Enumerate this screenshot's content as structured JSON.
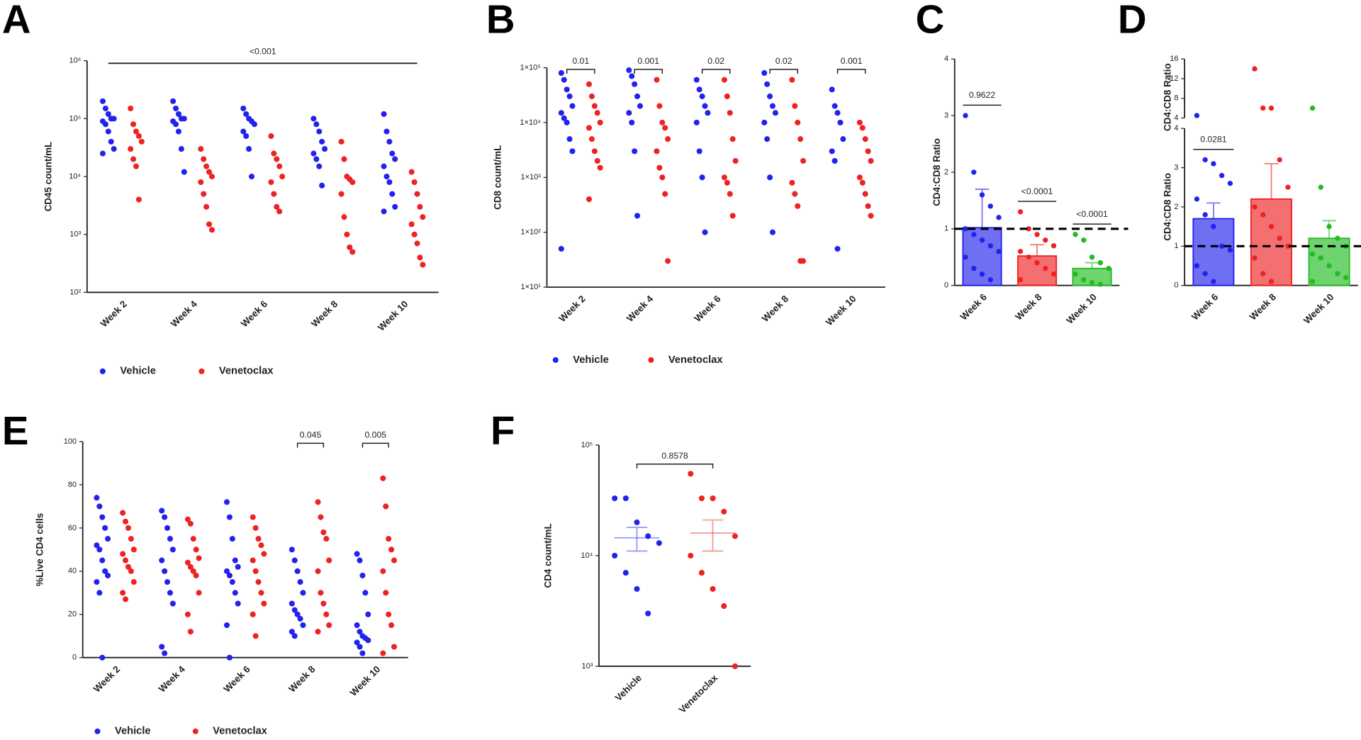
{
  "chart_data": [
    {
      "type": "scatter",
      "panel_label": "A",
      "y_label": "CD45 count/mL",
      "log_scale": true,
      "ylim": [
        100,
        1000000
      ],
      "yticks": [
        {
          "value": 100,
          "label": "10²"
        },
        {
          "value": 1000,
          "label": "10³"
        },
        {
          "value": 10000,
          "label": "10⁴"
        },
        {
          "value": 100000,
          "label": "10⁵"
        },
        {
          "value": 1000000,
          "label": "10⁶"
        }
      ],
      "categories": [
        "Week 2",
        "Week 4",
        "Week 6",
        "Week 8",
        "Week 10"
      ],
      "legend": true,
      "annotation": "<0.001",
      "series": [
        {
          "name": "Vehicle",
          "color": "#2222ee",
          "values": [
            [
              200000,
              150000,
              120000,
              100000,
              100000,
              90000,
              80000,
              60000,
              40000,
              30000,
              25000
            ],
            [
              200000,
              150000,
              120000,
              100000,
              100000,
              90000,
              80000,
              60000,
              30000,
              12000
            ],
            [
              150000,
              120000,
              100000,
              90000,
              80000,
              60000,
              50000,
              30000,
              10000
            ],
            [
              100000,
              80000,
              60000,
              40000,
              30000,
              25000,
              20000,
              15000,
              7000
            ],
            [
              120000,
              60000,
              40000,
              25000,
              20000,
              15000,
              10000,
              8000,
              5000,
              3000,
              2500
            ]
          ]
        },
        {
          "name": "Venetoclax",
          "color": "#ee2222",
          "values": [
            [
              150000,
              80000,
              60000,
              50000,
              40000,
              30000,
              20000,
              15000,
              4000
            ],
            [
              30000,
              20000,
              15000,
              12000,
              10000,
              8000,
              5000,
              3000,
              1500,
              1200
            ],
            [
              50000,
              25000,
              20000,
              15000,
              10000,
              8000,
              5000,
              3000,
              2500
            ],
            [
              40000,
              20000,
              10000,
              9000,
              8000,
              5000,
              2000,
              1000,
              600,
              500
            ],
            [
              12000,
              8000,
              5000,
              3000,
              2000,
              1500,
              1000,
              700,
              400,
              300
            ]
          ]
        }
      ]
    },
    {
      "type": "scatter",
      "panel_label": "B",
      "y_label": "CD8 count/mL",
      "log_scale": true,
      "ylim": [
        10,
        100000
      ],
      "yticks": [
        {
          "value": 10,
          "label": "1×10¹"
        },
        {
          "value": 100,
          "label": "1×10²"
        },
        {
          "value": 1000,
          "label": "1×10³"
        },
        {
          "value": 10000,
          "label": "1×10⁴"
        },
        {
          "value": 100000,
          "label": "1×10⁵"
        }
      ],
      "categories": [
        "Week 2",
        "Week 4",
        "Week 6",
        "Week 8",
        "Week 10"
      ],
      "legend": true,
      "annotations": [
        "0.01",
        "0.001",
        "0.02",
        "0.02",
        "0.001"
      ],
      "series": [
        {
          "name": "Vehicle",
          "color": "#2222ee",
          "values": [
            [
              80000,
              60000,
              40000,
              30000,
              20000,
              15000,
              12000,
              10000,
              5000,
              3000,
              50
            ],
            [
              90000,
              70000,
              50000,
              30000,
              20000,
              15000,
              10000,
              3000,
              200
            ],
            [
              60000,
              40000,
              30000,
              20000,
              15000,
              10000,
              3000,
              1000,
              100
            ],
            [
              80000,
              50000,
              30000,
              20000,
              15000,
              10000,
              5000,
              1000,
              100
            ],
            [
              40000,
              20000,
              15000,
              10000,
              5000,
              3000,
              2000,
              50
            ]
          ]
        },
        {
          "name": "Venetoclax",
          "color": "#ee2222",
          "values": [
            [
              50000,
              30000,
              20000,
              15000,
              10000,
              8000,
              5000,
              3000,
              2000,
              1500,
              400
            ],
            [
              60000,
              20000,
              10000,
              8000,
              5000,
              3000,
              1500,
              1000,
              500,
              30
            ],
            [
              60000,
              30000,
              15000,
              5000,
              2000,
              1000,
              800,
              500,
              200
            ],
            [
              60000,
              20000,
              10000,
              5000,
              2000,
              800,
              500,
              300,
              30,
              30
            ],
            [
              10000,
              8000,
              5000,
              3000,
              2000,
              1000,
              800,
              500,
              300,
              200
            ]
          ]
        }
      ]
    },
    {
      "type": "bar",
      "panel_label": "C",
      "y_label": "CD4:CD8 Ratio",
      "ylim": [
        0,
        4
      ],
      "yticks": [
        0,
        1,
        2,
        3,
        4
      ],
      "reference": 1,
      "categories": [
        "Week 6",
        "Week 8",
        "Week 10"
      ],
      "colors": [
        "#2222ee",
        "#ee2222",
        "#22bb22"
      ],
      "values": [
        1.02,
        0.52,
        0.3
      ],
      "errors": [
        0.68,
        0.2,
        0.1
      ],
      "points": [
        [
          3.0,
          2.0,
          1.6,
          1.4,
          1.2,
          1.0,
          0.9,
          0.8,
          0.7,
          0.6,
          0.5,
          0.3,
          0.2,
          0.1
        ],
        [
          1.3,
          1.0,
          0.9,
          0.8,
          0.7,
          0.6,
          0.5,
          0.4,
          0.3,
          0.2,
          0.1
        ],
        [
          0.9,
          0.8,
          0.5,
          0.4,
          0.3,
          0.2,
          0.1,
          0.05,
          0.02
        ]
      ],
      "annotations": [
        "0.9622",
        "<0.0001",
        "<0.0001"
      ]
    },
    {
      "type": "bar",
      "panel_label": "D",
      "y_label": "CD4:CD8 Ratio",
      "ylim": [
        0,
        4
      ],
      "yticks": [
        0,
        1,
        2,
        3,
        4
      ],
      "ylim_upper": [
        4,
        16
      ],
      "yticks_upper": [
        4,
        8,
        12,
        16
      ],
      "reference": 1,
      "categories": [
        "Week 6",
        "Week 8",
        "Week 10"
      ],
      "colors": [
        "#2222ee",
        "#ee2222",
        "#22bb22"
      ],
      "values": [
        1.7,
        2.2,
        1.2
      ],
      "errors": [
        0.4,
        0.9,
        0.45
      ],
      "points": [
        [
          4.5,
          3.2,
          3.1,
          2.8,
          2.6,
          2.2,
          1.8,
          1.5,
          1.0,
          0.9,
          0.5,
          0.3,
          0.1
        ],
        [
          14,
          6,
          6,
          3.2,
          2.5,
          2.0,
          1.8,
          1.5,
          1.2,
          1.0,
          0.7,
          0.3,
          0.1
        ],
        [
          6,
          2.5,
          1.5,
          1.2,
          1.0,
          0.8,
          0.7,
          0.5,
          0.3,
          0.2,
          0.1
        ]
      ],
      "annotations": [
        "0.0281",
        null,
        null
      ]
    },
    {
      "type": "scatter",
      "panel_label": "E",
      "y_label": "%Live CD4 cells",
      "ylim": [
        0,
        100
      ],
      "yticks": [
        0,
        20,
        40,
        60,
        80,
        100
      ],
      "categories": [
        "Week 2",
        "Week 4",
        "Week 6",
        "Week 8",
        "Week 10"
      ],
      "legend": true,
      "annotations": [
        null,
        null,
        null,
        "0.045",
        "0.005"
      ],
      "series": [
        {
          "name": "Vehicle",
          "color": "#2222ee",
          "values": [
            [
              74,
              70,
              65,
              60,
              55,
              52,
              50,
              45,
              40,
              38,
              35,
              30,
              0
            ],
            [
              68,
              65,
              60,
              55,
              50,
              45,
              40,
              35,
              30,
              25,
              5,
              2
            ],
            [
              72,
              65,
              55,
              45,
              42,
              40,
              38,
              35,
              30,
              25,
              15,
              0
            ],
            [
              50,
              45,
              40,
              35,
              30,
              25,
              22,
              20,
              18,
              15,
              12,
              10
            ],
            [
              48,
              45,
              38,
              30,
              20,
              15,
              12,
              10,
              9,
              8,
              7,
              5,
              2
            ]
          ]
        },
        {
          "name": "Venetoclax",
          "color": "#ee2222",
          "values": [
            [
              67,
              63,
              60,
              55,
              50,
              48,
              45,
              42,
              40,
              35,
              30,
              27
            ],
            [
              64,
              62,
              55,
              50,
              46,
              44,
              42,
              40,
              38,
              30,
              20,
              12
            ],
            [
              65,
              60,
              55,
              52,
              48,
              45,
              40,
              35,
              30,
              25,
              20,
              10
            ],
            [
              72,
              65,
              58,
              55,
              45,
              40,
              30,
              25,
              20,
              15,
              12
            ],
            [
              83,
              70,
              55,
              50,
              45,
              40,
              30,
              20,
              15,
              5,
              2
            ]
          ]
        }
      ]
    },
    {
      "type": "dot",
      "panel_label": "F",
      "y_label": "CD4 count/mL",
      "log_scale": true,
      "ylim": [
        1000,
        100000
      ],
      "yticks": [
        {
          "value": 1000,
          "label": "10³"
        },
        {
          "value": 10000,
          "label": "10⁴"
        },
        {
          "value": 100000,
          "label": "10⁵"
        }
      ],
      "categories": [
        "Vehicle",
        "Venetoclax"
      ],
      "colors": [
        "#2222ee",
        "#ee2222"
      ],
      "means": [
        14500,
        16000
      ],
      "errors": [
        3500,
        5000
      ],
      "points": [
        [
          33000,
          33000,
          20000,
          15000,
          13000,
          10000,
          7000,
          5000,
          3000
        ],
        [
          55000,
          33000,
          33000,
          25000,
          15000,
          10000,
          7000,
          5000,
          3500,
          1000
        ]
      ],
      "annotation": "0.8578"
    }
  ]
}
